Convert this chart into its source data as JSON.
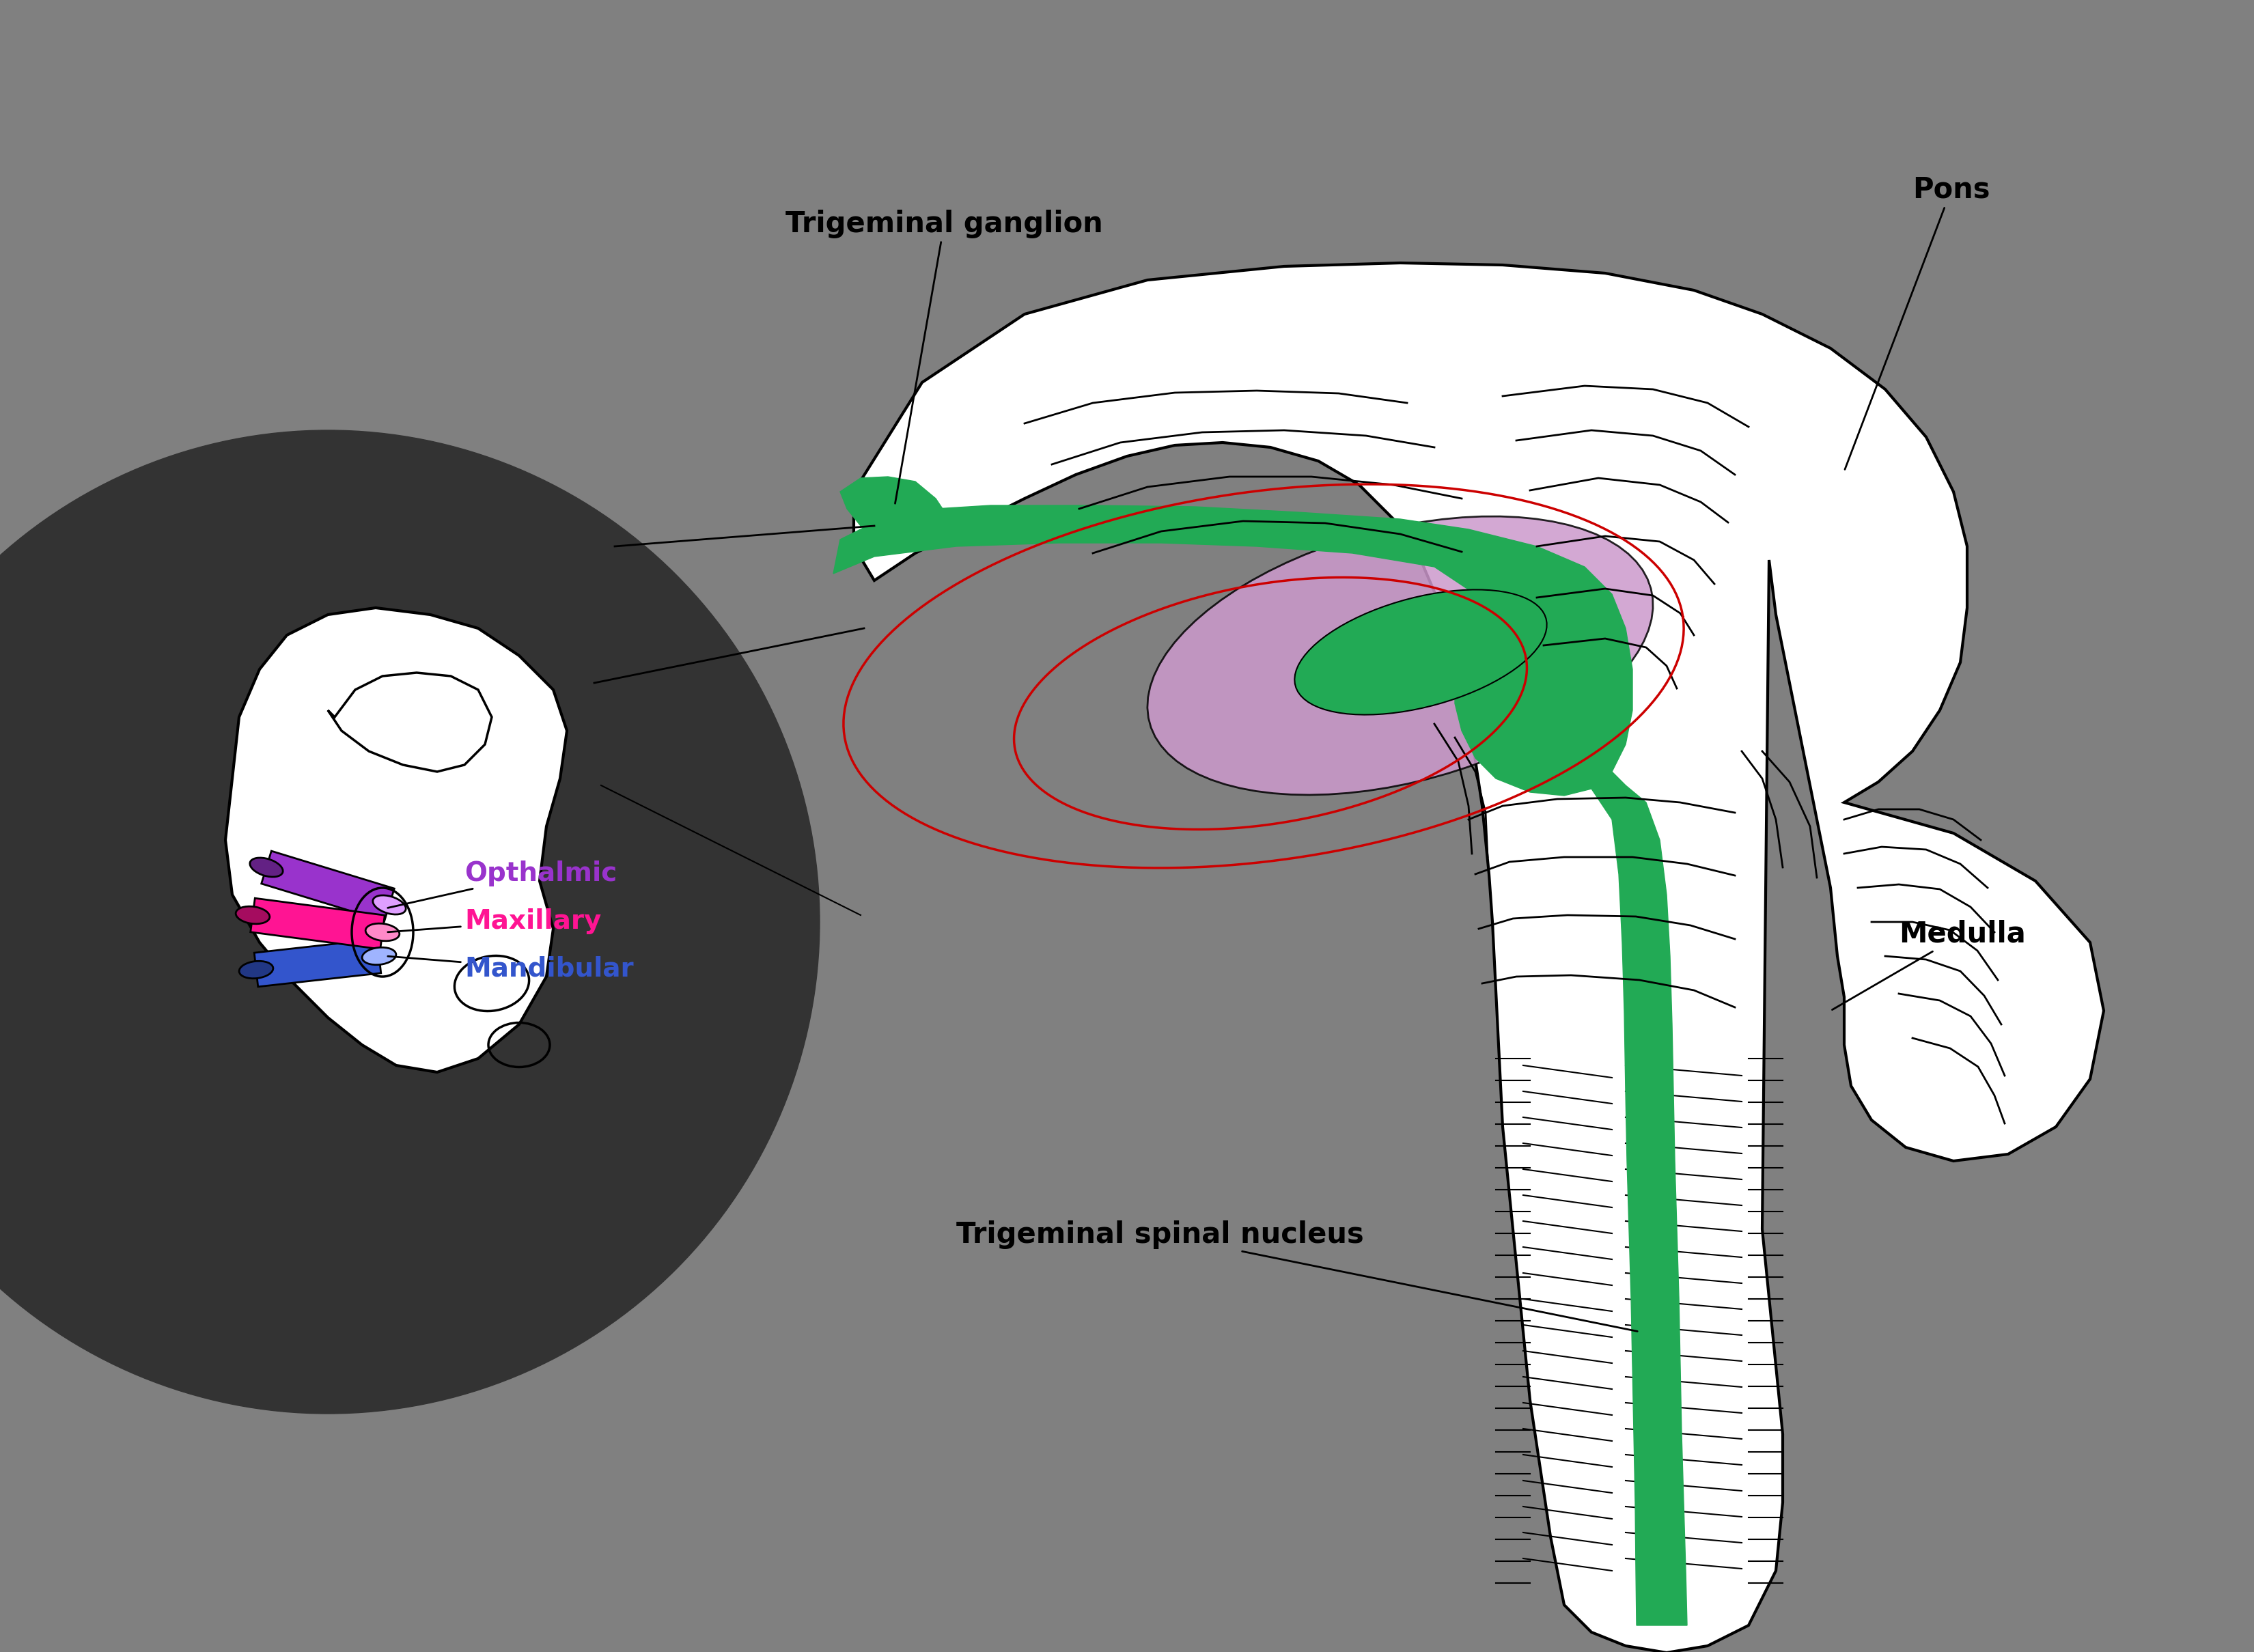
{
  "bg_color": "#808080",
  "dark_circle_color": "#333333",
  "white_color": "#ffffff",
  "green_color": "#22aa55",
  "purple_color": "#cc99cc",
  "red_color": "#cc0000",
  "ophthalmic_color": "#9933cc",
  "maxillary_color": "#ff1493",
  "mandibular_color": "#3355cc",
  "black_color": "#000000",
  "label_ganglion": "Trigeminal ganglion",
  "label_pons": "Pons",
  "label_medulla": "Medulla",
  "label_spinal": "Trigeminal spinal nucleus",
  "label_ophthalmic": "Opthalmic",
  "label_maxillary": "Maxillary",
  "label_mandibular": "Mandibular",
  "fs_main": 30,
  "fs_nerve": 28
}
